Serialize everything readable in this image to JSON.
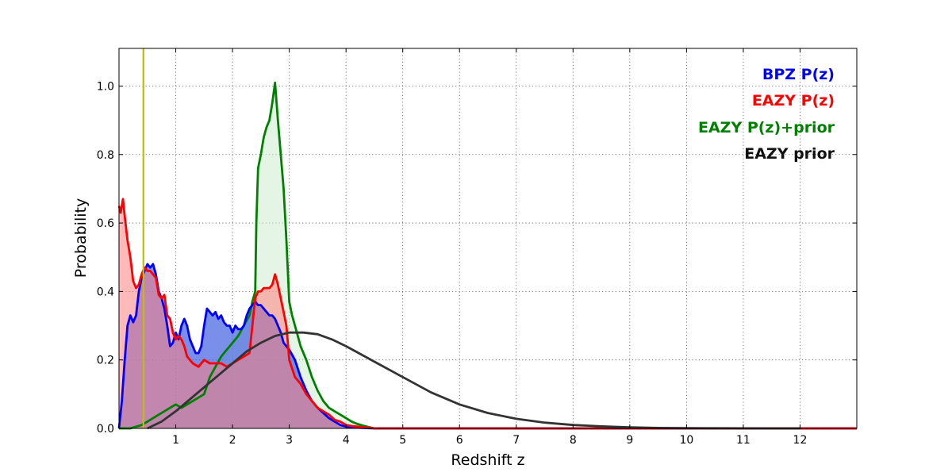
{
  "chart_data": {
    "type": "area",
    "xlabel": "Redshift z",
    "ylabel": "Probability",
    "xlim": [
      0,
      13
    ],
    "ylim": [
      0,
      1.11
    ],
    "xticks": [
      "1",
      "2",
      "3",
      "4",
      "5",
      "6",
      "7",
      "8",
      "9",
      "10",
      "11",
      "12"
    ],
    "yticks": [
      "0.0",
      "0.2",
      "0.4",
      "0.6",
      "0.8",
      "1.0"
    ],
    "grid": true,
    "legend_position": "top-right",
    "vline": {
      "x": 0.43,
      "color": "#bfbf00"
    },
    "series": [
      {
        "name": "BPZ P(z)",
        "color": "#0000ff",
        "fill": "#4060e0",
        "x": [
          0,
          0.05,
          0.1,
          0.15,
          0.2,
          0.25,
          0.3,
          0.35,
          0.4,
          0.45,
          0.5,
          0.55,
          0.6,
          0.65,
          0.7,
          0.75,
          0.8,
          0.85,
          0.9,
          0.95,
          1.0,
          1.05,
          1.1,
          1.15,
          1.2,
          1.25,
          1.3,
          1.35,
          1.4,
          1.45,
          1.5,
          1.55,
          1.6,
          1.65,
          1.7,
          1.75,
          1.8,
          1.85,
          1.9,
          1.95,
          2.0,
          2.05,
          2.1,
          2.15,
          2.2,
          2.25,
          2.3,
          2.35,
          2.4,
          2.45,
          2.5,
          2.55,
          2.6,
          2.65,
          2.7,
          2.75,
          2.8,
          2.85,
          2.9,
          3.0,
          3.1,
          3.2,
          3.3,
          3.4,
          3.5,
          3.6,
          3.7,
          3.8,
          3.9,
          4.0,
          4.2,
          4.5,
          5.0,
          6.0,
          8.0,
          10.0,
          12.0,
          13.0
        ],
        "y": [
          0,
          0.08,
          0.2,
          0.3,
          0.33,
          0.31,
          0.33,
          0.4,
          0.44,
          0.46,
          0.48,
          0.47,
          0.48,
          0.45,
          0.4,
          0.38,
          0.35,
          0.3,
          0.24,
          0.25,
          0.28,
          0.26,
          0.3,
          0.32,
          0.3,
          0.26,
          0.24,
          0.22,
          0.22,
          0.24,
          0.3,
          0.35,
          0.34,
          0.33,
          0.34,
          0.32,
          0.33,
          0.31,
          0.3,
          0.3,
          0.28,
          0.3,
          0.29,
          0.29,
          0.3,
          0.33,
          0.35,
          0.36,
          0.37,
          0.36,
          0.36,
          0.35,
          0.34,
          0.33,
          0.33,
          0.32,
          0.3,
          0.28,
          0.25,
          0.23,
          0.2,
          0.15,
          0.11,
          0.08,
          0.06,
          0.045,
          0.03,
          0.02,
          0.01,
          0.005,
          0.002,
          0.0,
          0.0,
          0.0,
          0.0,
          0.0,
          0.0,
          0.0
        ]
      },
      {
        "name": "EAZY P(z)",
        "color": "#ff0000",
        "fill": "#ff8080",
        "x": [
          0,
          0.03,
          0.07,
          0.1,
          0.15,
          0.2,
          0.25,
          0.3,
          0.35,
          0.4,
          0.45,
          0.5,
          0.55,
          0.6,
          0.65,
          0.7,
          0.75,
          0.8,
          0.85,
          0.9,
          0.95,
          1.0,
          1.05,
          1.1,
          1.15,
          1.2,
          1.3,
          1.4,
          1.5,
          1.6,
          1.7,
          1.8,
          1.9,
          2.0,
          2.1,
          2.2,
          2.3,
          2.4,
          2.45,
          2.5,
          2.55,
          2.6,
          2.65,
          2.7,
          2.75,
          2.8,
          2.85,
          2.9,
          2.95,
          3.0,
          3.1,
          3.2,
          3.3,
          3.4,
          3.5,
          3.6,
          3.7,
          3.8,
          3.9,
          4.0,
          4.1,
          4.2,
          4.3,
          4.4,
          4.5,
          4.7,
          5.0,
          6.0,
          13.0
        ],
        "y": [
          0.65,
          0.63,
          0.67,
          0.62,
          0.55,
          0.5,
          0.43,
          0.41,
          0.42,
          0.45,
          0.47,
          0.46,
          0.46,
          0.45,
          0.44,
          0.39,
          0.38,
          0.39,
          0.33,
          0.32,
          0.28,
          0.26,
          0.27,
          0.26,
          0.24,
          0.21,
          0.19,
          0.18,
          0.2,
          0.19,
          0.19,
          0.19,
          0.18,
          0.19,
          0.2,
          0.21,
          0.22,
          0.38,
          0.4,
          0.4,
          0.41,
          0.41,
          0.41,
          0.42,
          0.45,
          0.42,
          0.38,
          0.34,
          0.3,
          0.2,
          0.15,
          0.13,
          0.1,
          0.08,
          0.06,
          0.05,
          0.04,
          0.025,
          0.02,
          0.01,
          0.007,
          0.005,
          0.003,
          0.002,
          0.0,
          0.0,
          0.0,
          0.0,
          0.0
        ]
      },
      {
        "name": "EAZY P(z)+prior",
        "color": "#008000",
        "fill": "#d0ecd0",
        "x": [
          0,
          0.2,
          0.4,
          0.5,
          0.6,
          0.7,
          0.8,
          0.9,
          1.0,
          1.1,
          1.2,
          1.3,
          1.4,
          1.5,
          1.6,
          1.7,
          1.8,
          1.9,
          2.0,
          2.1,
          2.2,
          2.3,
          2.35,
          2.4,
          2.42,
          2.45,
          2.5,
          2.55,
          2.6,
          2.65,
          2.7,
          2.75,
          2.8,
          2.85,
          2.9,
          2.95,
          3.0,
          3.05,
          3.1,
          3.2,
          3.3,
          3.4,
          3.5,
          3.6,
          3.7,
          3.8,
          3.9,
          4.0,
          4.1,
          4.2,
          4.3,
          4.4,
          4.5,
          4.7,
          5.0,
          6.0,
          8.0,
          10.0,
          12.0,
          13.0
        ],
        "y": [
          0,
          0.0,
          0.01,
          0.02,
          0.03,
          0.04,
          0.05,
          0.06,
          0.07,
          0.06,
          0.07,
          0.08,
          0.09,
          0.1,
          0.15,
          0.18,
          0.21,
          0.23,
          0.25,
          0.27,
          0.3,
          0.33,
          0.37,
          0.4,
          0.6,
          0.76,
          0.8,
          0.85,
          0.88,
          0.9,
          0.95,
          1.01,
          0.9,
          0.8,
          0.7,
          0.55,
          0.37,
          0.33,
          0.3,
          0.24,
          0.2,
          0.15,
          0.11,
          0.08,
          0.06,
          0.05,
          0.04,
          0.03,
          0.02,
          0.013,
          0.008,
          0.004,
          0.0,
          0.0,
          0.0,
          0.0,
          0.0,
          0.0,
          0.0,
          0.0
        ]
      },
      {
        "name": "EAZY prior",
        "color": "#333333",
        "x": [
          0.5,
          0.75,
          1.0,
          1.25,
          1.5,
          1.75,
          2.0,
          2.25,
          2.5,
          2.75,
          3.0,
          3.25,
          3.5,
          3.75,
          4.0,
          4.5,
          5.0,
          5.5,
          6.0,
          6.5,
          7.0,
          7.5,
          8.0,
          8.5,
          9.0,
          9.5,
          10.0,
          10.5,
          11.0,
          11.5,
          12.0
        ],
        "y": [
          0.0,
          0.02,
          0.05,
          0.085,
          0.12,
          0.155,
          0.19,
          0.225,
          0.25,
          0.27,
          0.28,
          0.28,
          0.275,
          0.26,
          0.24,
          0.195,
          0.15,
          0.105,
          0.07,
          0.045,
          0.028,
          0.017,
          0.01,
          0.006,
          0.003,
          0.0015,
          0.0008,
          0.0004,
          0.0002,
          0.0001,
          0.0
        ]
      }
    ]
  },
  "legend": [
    {
      "label": "BPZ P(z)",
      "color": "#0000ff"
    },
    {
      "label": "EAZY P(z)",
      "color": "#ff0000"
    },
    {
      "label": "EAZY P(z)+prior",
      "color": "#008000"
    },
    {
      "label": "EAZY prior",
      "color": "#111111"
    }
  ]
}
